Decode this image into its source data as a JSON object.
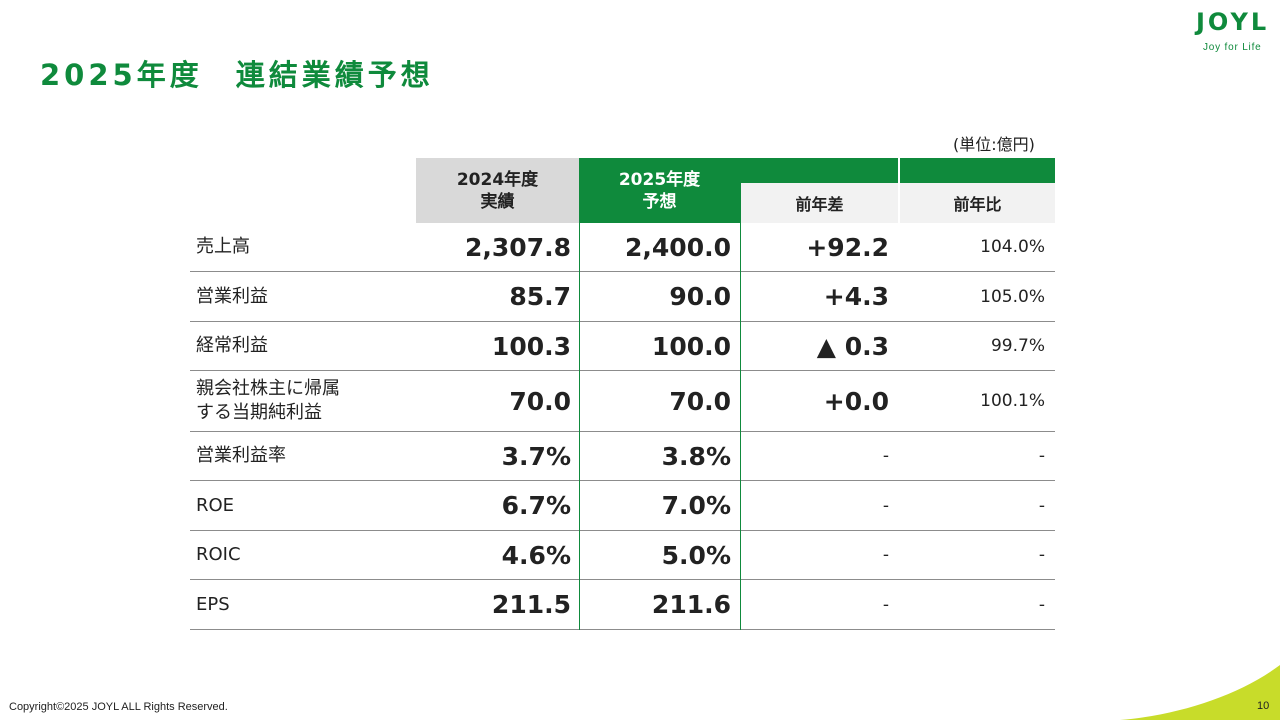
{
  "page": {
    "title": "2025年度　連結業績予想",
    "unit_note": "(単位:億円)"
  },
  "logo": {
    "word": "JOYL",
    "tagline": "Joy for Life",
    "colors": {
      "green": "#0f8a3c",
      "lime": "#b7d32f"
    }
  },
  "table": {
    "headers": {
      "col_2024_line1": "2024年度",
      "col_2024_line2": "実績",
      "col_2025_line1": "2025年度",
      "col_2025_line2": "予想",
      "col_diff": "前年差",
      "col_ratio": "前年比"
    },
    "rows": [
      {
        "label": "売上高",
        "actual_2024": "2,307.8",
        "forecast_2025": "2,400.0",
        "diff": "+92.2",
        "ratio": "104.0%"
      },
      {
        "label": "営業利益",
        "actual_2024": "85.7",
        "forecast_2025": "90.0",
        "diff": "+4.3",
        "ratio": "105.0%"
      },
      {
        "label": "経常利益",
        "actual_2024": "100.3",
        "forecast_2025": "100.0",
        "diff": "▲ 0.3",
        "ratio": "99.7%"
      },
      {
        "label_line1": "親会社株主に帰属",
        "label_line2": "する当期純利益",
        "actual_2024": "70.0",
        "forecast_2025": "70.0",
        "diff": "+0.0",
        "ratio": "100.1%"
      },
      {
        "label": "営業利益率",
        "actual_2024": "3.7%",
        "forecast_2025": "3.8%",
        "diff": "-",
        "ratio": "-"
      },
      {
        "label": "ROE",
        "actual_2024": "6.7%",
        "forecast_2025": "7.0%",
        "diff": "-",
        "ratio": "-"
      },
      {
        "label": "ROIC",
        "actual_2024": "4.6%",
        "forecast_2025": "5.0%",
        "diff": "-",
        "ratio": "-"
      },
      {
        "label": "EPS",
        "actual_2024": "211.5",
        "forecast_2025": "211.6",
        "diff": "-",
        "ratio": "-"
      }
    ]
  },
  "footer": {
    "copyright": "Copyright©2025 JOYL ALL Rights Reserved.",
    "page_number": "10"
  }
}
